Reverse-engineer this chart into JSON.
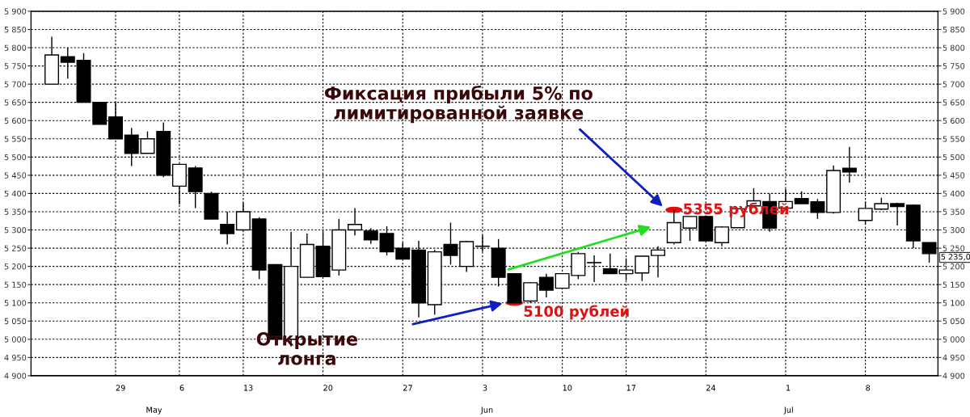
{
  "chart_data": {
    "type": "candlestick",
    "categories": [
      null,
      null,
      null,
      null,
      "29",
      null,
      null,
      null,
      "6",
      null,
      null,
      null,
      "13",
      null,
      null,
      null,
      null,
      "20",
      null,
      null,
      null,
      null,
      "27",
      null,
      null,
      null,
      null,
      "3",
      null,
      null,
      null,
      null,
      "10",
      null,
      null,
      null,
      "17",
      null,
      null,
      null,
      null,
      "24",
      null,
      null,
      null,
      null,
      "1",
      null,
      null,
      null,
      null,
      "8",
      null,
      null,
      null,
      null
    ],
    "ohlc": [
      [
        5700,
        5830,
        5700,
        5780
      ],
      [
        5775,
        5800,
        5715,
        5760
      ],
      [
        5765,
        5785,
        5650,
        5650
      ],
      [
        5650,
        5650,
        5590,
        5590
      ],
      [
        5610,
        5650,
        5550,
        5550
      ],
      [
        5560,
        5580,
        5475,
        5510
      ],
      [
        5510,
        5570,
        5510,
        5550
      ],
      [
        5570,
        5595,
        5445,
        5450
      ],
      [
        5420,
        5480,
        5370,
        5480
      ],
      [
        5470,
        5475,
        5360,
        5405
      ],
      [
        5400,
        5405,
        5330,
        5330
      ],
      [
        5315,
        5350,
        5260,
        5290
      ],
      [
        5300,
        5375,
        5300,
        5350
      ],
      [
        5330,
        5335,
        5165,
        5190
      ],
      [
        5205,
        5205,
        5000,
        5000
      ],
      [
        5000,
        5295,
        4980,
        5200
      ],
      [
        5170,
        5290,
        5170,
        5260
      ],
      [
        5255,
        5295,
        5170,
        5172
      ],
      [
        5190,
        5330,
        5175,
        5300
      ],
      [
        5300,
        5360,
        5285,
        5315
      ],
      [
        5297,
        5305,
        5262,
        5273
      ],
      [
        5290,
        5310,
        5230,
        5240
      ],
      [
        5250,
        5265,
        5220,
        5220
      ],
      [
        5245,
        5270,
        5060,
        5100
      ],
      [
        5095,
        5245,
        5068,
        5240
      ],
      [
        5260,
        5320,
        5205,
        5230
      ],
      [
        5200,
        5270,
        5185,
        5268
      ],
      [
        5255,
        5285,
        5240,
        5255
      ],
      [
        5250,
        5275,
        5145,
        5170
      ],
      [
        5180,
        5180,
        5100,
        5100
      ],
      [
        5105,
        5157,
        5100,
        5155
      ],
      [
        5170,
        5180,
        5115,
        5135
      ],
      [
        5140,
        5180,
        5140,
        5180
      ],
      [
        5175,
        5240,
        5165,
        5235
      ],
      [
        5210,
        5230,
        5157,
        5210
      ],
      [
        5193,
        5235,
        5180,
        5180
      ],
      [
        5180,
        5222,
        5162,
        5190
      ],
      [
        5182,
        5228,
        5160,
        5228
      ],
      [
        5230,
        5255,
        5170,
        5245
      ],
      [
        5265,
        5355,
        5260,
        5320
      ],
      [
        5305,
        5338,
        5270,
        5337
      ],
      [
        5337,
        5340,
        5270,
        5270
      ],
      [
        5265,
        5310,
        5255,
        5308
      ],
      [
        5306,
        5360,
        5306,
        5358
      ],
      [
        5366,
        5415,
        5366,
        5380
      ],
      [
        5378,
        5400,
        5295,
        5305
      ],
      [
        5360,
        5412,
        5360,
        5378
      ],
      [
        5386,
        5406,
        5372,
        5372
      ],
      [
        5377,
        5385,
        5330,
        5348
      ],
      [
        5348,
        5477,
        5345,
        5463
      ],
      [
        5469,
        5528,
        5430,
        5459
      ],
      [
        5326,
        5377,
        5315,
        5359
      ],
      [
        5357,
        5388,
        5355,
        5372
      ],
      [
        5372,
        5375,
        5312,
        5364
      ],
      [
        5368,
        5370,
        5250,
        5270
      ],
      [
        5265,
        5265,
        5210,
        5235
      ]
    ],
    "ylim": [
      4900,
      5900
    ],
    "yticks": [
      {
        "value": 4900,
        "label": "4 900"
      },
      {
        "value": 4950,
        "label": "4 950"
      },
      {
        "value": 5000,
        "label": "5 000"
      },
      {
        "value": 5050,
        "label": "5 050"
      },
      {
        "value": 5100,
        "label": "5 100"
      },
      {
        "value": 5150,
        "label": "5 150"
      },
      {
        "value": 5200,
        "label": "5 200"
      },
      {
        "value": 5250,
        "label": "5 250"
      },
      {
        "value": 5300,
        "label": "5 300"
      },
      {
        "value": 5350,
        "label": "5 350"
      },
      {
        "value": 5400,
        "label": "5 400"
      },
      {
        "value": 5450,
        "label": "5 450"
      },
      {
        "value": 5500,
        "label": "5 500"
      },
      {
        "value": 5550,
        "label": "5 550"
      },
      {
        "value": 5600,
        "label": "5 600"
      },
      {
        "value": 5650,
        "label": "5 650"
      },
      {
        "value": 5700,
        "label": "5 700"
      },
      {
        "value": 5750,
        "label": "5 750"
      },
      {
        "value": 5800,
        "label": "5 800"
      },
      {
        "value": 5850,
        "label": "5 850"
      },
      {
        "value": 5900,
        "label": "5 900"
      }
    ],
    "y2lim": [
      4900,
      5900
    ],
    "y2ticks": [
      {
        "value": 4900,
        "label": "4 900"
      },
      {
        "value": 4950,
        "label": "4 950"
      },
      {
        "value": 5000,
        "label": "5 000"
      },
      {
        "value": 5050,
        "label": "5 050"
      },
      {
        "value": 5100,
        "label": "5 100"
      },
      {
        "value": 5150,
        "label": "5 150"
      },
      {
        "value": 5200,
        "label": "5 200"
      },
      {
        "value": 5250,
        "label": "5 250"
      },
      {
        "value": 5300,
        "label": "5 300"
      },
      {
        "value": 5350,
        "label": "5 350"
      },
      {
        "value": 5400,
        "label": "5 400"
      },
      {
        "value": 5450,
        "label": "5 450"
      },
      {
        "value": 5500,
        "label": "5 500"
      },
      {
        "value": 5550,
        "label": "5 550"
      },
      {
        "value": 5600,
        "label": "5 600"
      },
      {
        "value": 5650,
        "label": "5 650"
      },
      {
        "value": 5700,
        "label": "5 700"
      },
      {
        "value": 5750,
        "label": "5 750"
      },
      {
        "value": 5800,
        "label": "5 800"
      },
      {
        "value": 5850,
        "label": "5 850"
      },
      {
        "value": 5900,
        "label": "5 900"
      }
    ],
    "grid": true,
    "annotations": [
      "Фиксация прибыли 5% по\nлимитированной заявке",
      {
        "text": "5355 рублей",
        "y": 5355
      },
      "Открытие\nлонга",
      "5100 рублей",
      "5 235,0",
      "May",
      "Jun",
      "Jul"
    ]
  }
}
